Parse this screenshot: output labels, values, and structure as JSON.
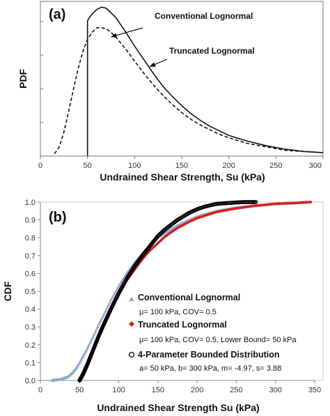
{
  "chart_data": [
    {
      "type": "line",
      "panel_label": "(a)",
      "xlabel": "Undrained Shear Strength, Su (kPa)",
      "ylabel": "PDF",
      "xlim": [
        0,
        300
      ],
      "xticks": [
        "0",
        "50",
        "100",
        "150",
        "200",
        "250",
        "300"
      ],
      "y_tick_labels": false,
      "grid": false,
      "series": [
        {
          "name": "Conventional Lognormal",
          "style": "dashed",
          "x": [
            15,
            20,
            25,
            30,
            35,
            40,
            45,
            50,
            55,
            60,
            65,
            70,
            75,
            80,
            85,
            90,
            100,
            110,
            120,
            130,
            140,
            150,
            160,
            170,
            180,
            190,
            200,
            220,
            240,
            260,
            280,
            300
          ],
          "y": [
            0.0002,
            0.0008,
            0.0021,
            0.0039,
            0.0058,
            0.0076,
            0.0091,
            0.0102,
            0.0108,
            0.0112,
            0.0112,
            0.0111,
            0.0108,
            0.0104,
            0.0099,
            0.0094,
            0.0083,
            0.0072,
            0.0062,
            0.0053,
            0.0045,
            0.0038,
            0.0032,
            0.0027,
            0.0023,
            0.0019,
            0.0016,
            0.0011,
            0.0008,
            0.0005,
            0.0004,
            0.0003
          ]
        },
        {
          "name": "Truncated Lognormal",
          "style": "solid",
          "x": [
            50,
            50,
            52,
            55,
            60,
            65,
            70,
            75,
            80,
            85,
            90,
            100,
            110,
            120,
            130,
            140,
            150,
            160,
            170,
            180,
            190,
            200,
            220,
            240,
            260,
            280,
            300
          ],
          "y": [
            0,
            0.0118,
            0.0121,
            0.0124,
            0.0128,
            0.013,
            0.0129,
            0.0125,
            0.0121,
            0.0115,
            0.0109,
            0.0096,
            0.0084,
            0.0072,
            0.0061,
            0.0052,
            0.0044,
            0.0037,
            0.0031,
            0.0026,
            0.0022,
            0.0018,
            0.0013,
            0.0009,
            0.0006,
            0.0004,
            0.0003
          ]
        }
      ],
      "annotations": [
        {
          "text": "Conventional Lognormal",
          "arrow_to": [
            75,
            0.0104
          ]
        },
        {
          "text": "Truncated Lognormal",
          "arrow_to": [
            116,
            0.0078
          ]
        }
      ]
    },
    {
      "type": "scatter",
      "panel_label": "(b)",
      "xlabel": "Undrained Shear Strength Su (kPa)",
      "ylabel": "CDF",
      "xlim": [
        0,
        350
      ],
      "ylim": [
        0,
        1.0
      ],
      "xticks": [
        "0",
        "50",
        "100",
        "150",
        "200",
        "250",
        "300",
        "350"
      ],
      "yticks": [
        "0.0",
        "0.1",
        "0.2",
        "0.3",
        "0.4",
        "0.5",
        "0.6",
        "0.7",
        "0.8",
        "0.9",
        "1.0"
      ],
      "grid": false,
      "legend_placement": "bottom-right",
      "legend": [
        {
          "name": "Conventional Lognormal",
          "param": "μ= 100 kPa, COV= 0.5",
          "marker": "triangle",
          "color": "#8fa9d4"
        },
        {
          "name": "Truncated Lognormal",
          "param": "μ= 100 kPa, COV= 0.5, Lower Bound= 50 kPa",
          "marker": "diamond",
          "color": "#d42020"
        },
        {
          "name": "4-Parameter Bounded Distribution",
          "param": "a= 50 kPa, b= 300 kPa, m= -4.97, s= 3.88",
          "marker": "circle",
          "color": "#000000"
        }
      ],
      "series": [
        {
          "name": "Conventional Lognormal",
          "color": "#8fa9d4",
          "x": [
            15,
            25,
            35,
            40,
            45,
            50,
            55,
            60,
            65,
            70,
            75,
            80,
            90,
            100,
            110,
            120,
            130,
            140,
            150,
            160,
            175,
            190,
            200,
            225,
            250,
            275,
            300,
            325,
            340
          ],
          "y": [
            0.0,
            0.005,
            0.02,
            0.04,
            0.065,
            0.1,
            0.14,
            0.18,
            0.225,
            0.27,
            0.32,
            0.36,
            0.45,
            0.53,
            0.6,
            0.66,
            0.71,
            0.76,
            0.8,
            0.83,
            0.87,
            0.9,
            0.92,
            0.95,
            0.97,
            0.98,
            0.99,
            0.995,
            1.0
          ]
        },
        {
          "name": "Truncated Lognormal",
          "color": "#d42020",
          "x": [
            50,
            55,
            60,
            65,
            70,
            75,
            80,
            90,
            100,
            110,
            120,
            130,
            140,
            150,
            160,
            175,
            190,
            200,
            225,
            250,
            275,
            300,
            325,
            345
          ],
          "y": [
            0.0,
            0.05,
            0.1,
            0.155,
            0.21,
            0.26,
            0.31,
            0.4,
            0.48,
            0.56,
            0.62,
            0.68,
            0.73,
            0.77,
            0.81,
            0.855,
            0.89,
            0.91,
            0.945,
            0.965,
            0.98,
            0.99,
            0.995,
            1.0
          ]
        },
        {
          "name": "4-Parameter Bounded Distribution",
          "color": "#000000",
          "x": [
            50,
            55,
            60,
            65,
            70,
            75,
            80,
            90,
            100,
            110,
            120,
            130,
            140,
            150,
            160,
            175,
            190,
            200,
            210,
            225,
            240,
            250,
            260,
            275
          ],
          "y": [
            0.0,
            0.04,
            0.09,
            0.145,
            0.2,
            0.255,
            0.305,
            0.4,
            0.49,
            0.57,
            0.64,
            0.7,
            0.755,
            0.81,
            0.85,
            0.9,
            0.94,
            0.96,
            0.975,
            0.99,
            0.995,
            0.998,
            1.0,
            1.0
          ]
        }
      ]
    }
  ]
}
